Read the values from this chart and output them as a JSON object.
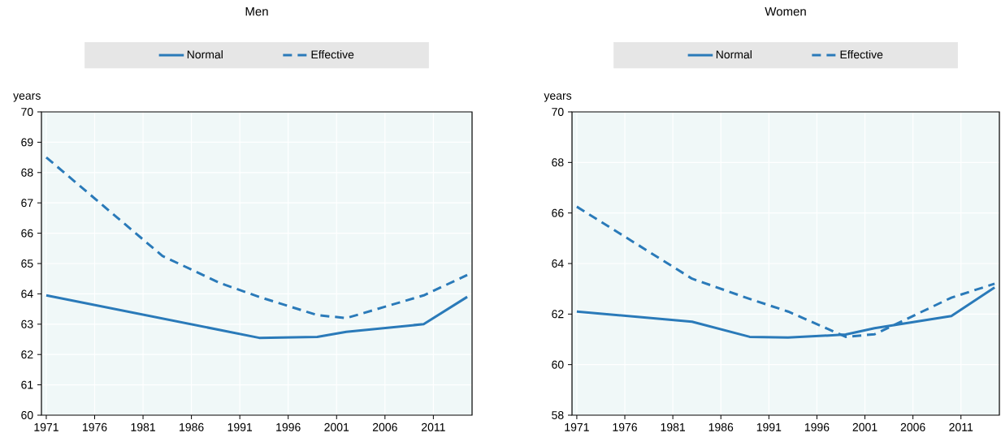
{
  "chart_data": [
    {
      "type": "line",
      "title": "Men",
      "ylabel": "years",
      "xlim": [
        1970.5,
        2015
      ],
      "ylim": [
        60,
        70
      ],
      "xticks": [
        1971,
        1976,
        1981,
        1986,
        1991,
        1996,
        2001,
        2006,
        2011
      ],
      "yticks": [
        60,
        61,
        62,
        63,
        64,
        65,
        66,
        67,
        68,
        69,
        70
      ],
      "grid": true,
      "legend": "top",
      "series": [
        {
          "name": "Normal",
          "color": "#2a7ab9",
          "line_style": "solid",
          "x": [
            1971,
            1993,
            1999,
            2002,
            2010,
            2014.5
          ],
          "values": [
            63.95,
            62.55,
            62.58,
            62.75,
            63.0,
            63.9
          ]
        },
        {
          "name": "Effective",
          "color": "#2a7ab9",
          "line_style": "dashed",
          "x": [
            1971,
            1983,
            1989,
            1993,
            1999,
            2002,
            2010,
            2014.5
          ],
          "values": [
            68.5,
            65.25,
            64.35,
            63.9,
            63.3,
            63.2,
            63.95,
            64.62
          ]
        }
      ]
    },
    {
      "type": "line",
      "title": "Women",
      "ylabel": "years",
      "xlim": [
        1970.5,
        2015
      ],
      "ylim": [
        58,
        70
      ],
      "xticks": [
        1971,
        1976,
        1981,
        1986,
        1991,
        1996,
        2001,
        2006,
        2011
      ],
      "yticks": [
        58,
        60,
        62,
        64,
        66,
        68,
        70
      ],
      "grid": true,
      "legend": "top",
      "series": [
        {
          "name": "Normal",
          "color": "#2a7ab9",
          "line_style": "solid",
          "x": [
            1971,
            1983,
            1989,
            1993,
            1999,
            2002,
            2010,
            2014.5
          ],
          "values": [
            62.1,
            61.7,
            61.1,
            61.07,
            61.19,
            61.44,
            61.92,
            63.05
          ]
        },
        {
          "name": "Effective",
          "color": "#2a7ab9",
          "line_style": "dashed",
          "x": [
            1971,
            1983,
            1989,
            1993,
            1999,
            2002,
            2010,
            2014.5
          ],
          "values": [
            66.25,
            63.4,
            62.6,
            62.1,
            61.1,
            61.2,
            62.65,
            63.2
          ]
        }
      ]
    }
  ]
}
